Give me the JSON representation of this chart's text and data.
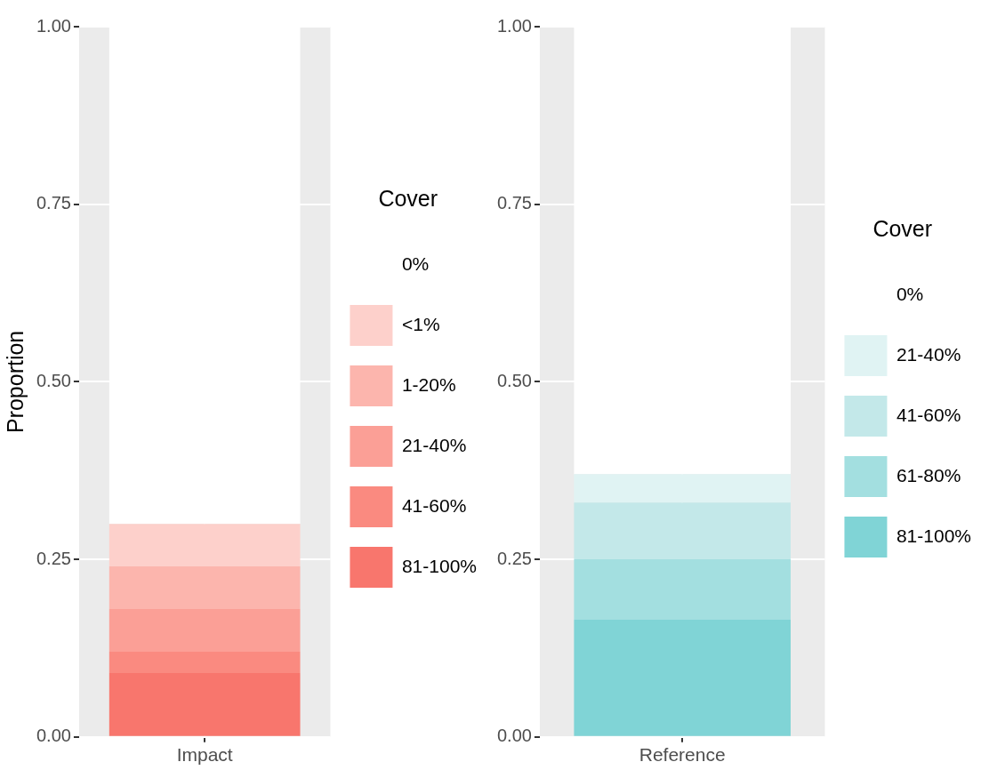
{
  "chart_data": [
    {
      "type": "bar",
      "ylabel": "Proportion",
      "categories": [
        "Impact"
      ],
      "stacked": true,
      "grid": true,
      "legend": "right",
      "legend_title": "Cover",
      "ylim": [
        0,
        1
      ],
      "yticks": [
        {
          "value": 0,
          "label": "0.00"
        },
        {
          "value": 0.25,
          "label": "0.25"
        },
        {
          "value": 0.5,
          "label": "0.50"
        },
        {
          "value": 0.75,
          "label": "0.75"
        },
        {
          "value": 1,
          "label": "1.00"
        }
      ],
      "series": [
        {
          "name": "81-100%",
          "color": "#f8766d",
          "values": [
            0.09
          ]
        },
        {
          "name": "41-60%",
          "color": "#fa8a80",
          "values": [
            0.03
          ]
        },
        {
          "name": "21-40%",
          "color": "#fb9f96",
          "values": [
            0.06
          ]
        },
        {
          "name": "1-20%",
          "color": "#fcb5ad",
          "values": [
            0.06
          ]
        },
        {
          "name": "<1%",
          "color": "#fdd0cb",
          "values": [
            0.06
          ]
        },
        {
          "name": "0%",
          "color": "#ffffff",
          "values": [
            0.7
          ]
        }
      ]
    },
    {
      "type": "bar",
      "categories": [
        "Reference"
      ],
      "stacked": true,
      "grid": true,
      "legend": "right",
      "legend_title": "Cover",
      "ylim": [
        0,
        1
      ],
      "yticks": [
        {
          "value": 0,
          "label": "0.00"
        },
        {
          "value": 0.25,
          "label": "0.25"
        },
        {
          "value": 0.5,
          "label": "0.50"
        },
        {
          "value": 0.75,
          "label": "0.75"
        },
        {
          "value": 1,
          "label": "1.00"
        }
      ],
      "series": [
        {
          "name": "81-100%",
          "color": "#80d4d6",
          "values": [
            0.165
          ]
        },
        {
          "name": "61-80%",
          "color": "#a3dfe0",
          "values": [
            0.085
          ]
        },
        {
          "name": "41-60%",
          "color": "#c3e8e9",
          "values": [
            0.08
          ]
        },
        {
          "name": "21-40%",
          "color": "#e0f3f3",
          "values": [
            0.04
          ]
        },
        {
          "name": "0%",
          "color": "#ffffff",
          "values": [
            0.63
          ]
        }
      ]
    }
  ]
}
